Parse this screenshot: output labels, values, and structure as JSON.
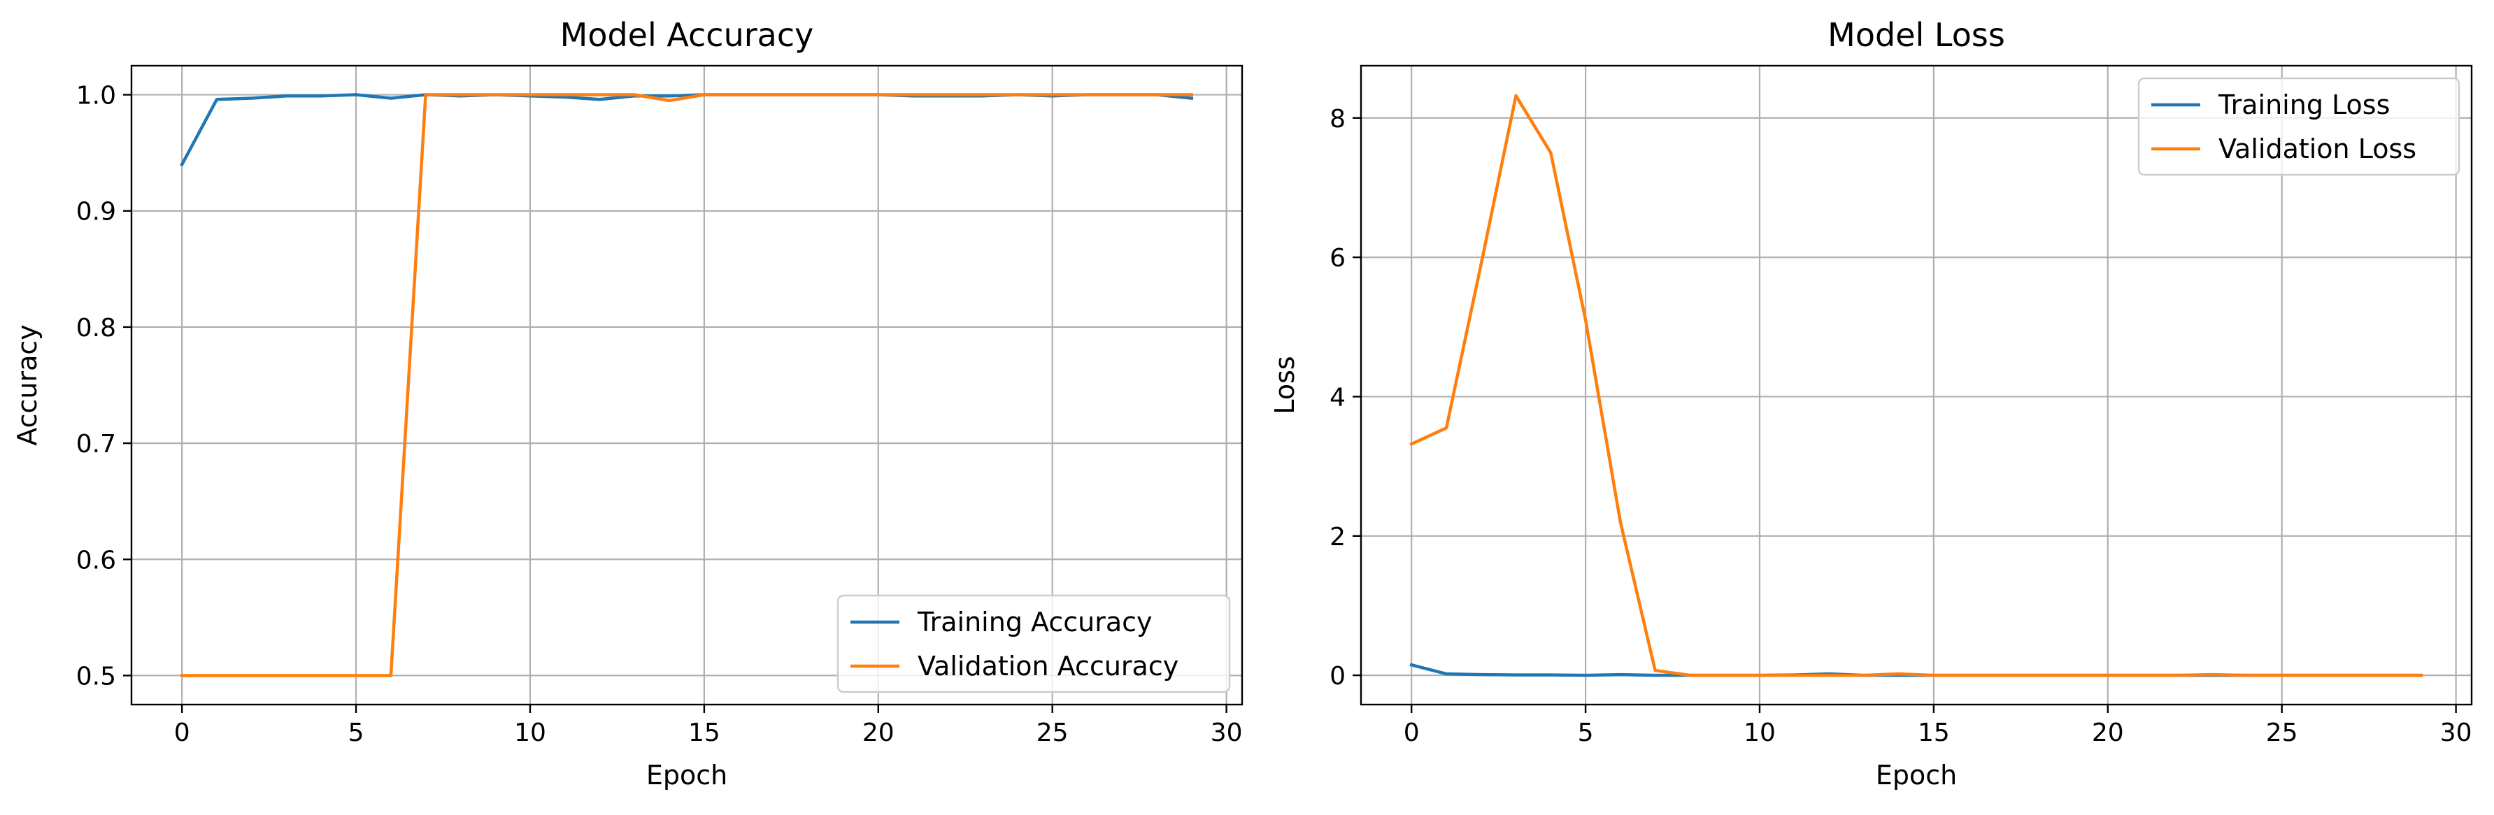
{
  "chart_data": [
    {
      "id": "accuracy",
      "type": "line",
      "title": "Model Accuracy",
      "xlabel": "Epoch",
      "ylabel": "Accuracy",
      "xlim": [
        -1.45,
        30.45
      ],
      "ylim": [
        0.475,
        1.025
      ],
      "xticks": [
        0,
        5,
        10,
        15,
        20,
        25,
        30
      ],
      "yticks": [
        0.5,
        0.6,
        0.7,
        0.8,
        0.9,
        1.0
      ],
      "ytick_labels": [
        "0.5",
        "0.6",
        "0.7",
        "0.8",
        "0.9",
        "1.0"
      ],
      "grid": true,
      "legend_position": "lower-right",
      "x": [
        0,
        1,
        2,
        3,
        4,
        5,
        6,
        7,
        8,
        9,
        10,
        11,
        12,
        13,
        14,
        15,
        16,
        17,
        18,
        19,
        20,
        21,
        22,
        23,
        24,
        25,
        26,
        27,
        28,
        29
      ],
      "series": [
        {
          "name": "Training Accuracy",
          "color": "#1f77b4",
          "values": [
            0.94,
            0.996,
            0.997,
            0.999,
            0.999,
            1.0,
            0.997,
            1.0,
            0.999,
            1.0,
            0.999,
            0.998,
            0.996,
            0.999,
            0.999,
            1.0,
            1.0,
            1.0,
            1.0,
            1.0,
            1.0,
            0.999,
            0.999,
            0.999,
            1.0,
            0.999,
            1.0,
            1.0,
            1.0,
            0.997
          ]
        },
        {
          "name": "Validation Accuracy",
          "color": "#ff7f0e",
          "values": [
            0.5,
            0.5,
            0.5,
            0.5,
            0.5,
            0.5,
            0.5,
            1.0,
            1.0,
            1.0,
            1.0,
            1.0,
            1.0,
            1.0,
            0.995,
            1.0,
            1.0,
            1.0,
            1.0,
            1.0,
            1.0,
            1.0,
            1.0,
            1.0,
            1.0,
            1.0,
            1.0,
            1.0,
            1.0,
            1.0
          ]
        }
      ]
    },
    {
      "id": "loss",
      "type": "line",
      "title": "Model Loss",
      "xlabel": "Epoch",
      "ylabel": "Loss",
      "xlim": [
        -1.45,
        30.45
      ],
      "ylim": [
        -0.42,
        8.75
      ],
      "xticks": [
        0,
        5,
        10,
        15,
        20,
        25,
        30
      ],
      "yticks": [
        0,
        2,
        4,
        6,
        8
      ],
      "ytick_labels": [
        "0",
        "2",
        "4",
        "6",
        "8"
      ],
      "grid": true,
      "legend_position": "top-right",
      "x": [
        0,
        1,
        2,
        3,
        4,
        5,
        6,
        7,
        8,
        9,
        10,
        11,
        12,
        13,
        14,
        15,
        16,
        17,
        18,
        19,
        20,
        21,
        22,
        23,
        24,
        25,
        26,
        27,
        28,
        29
      ],
      "series": [
        {
          "name": "Training Loss",
          "color": "#1f77b4",
          "values": [
            0.15,
            0.02,
            0.01,
            0.005,
            0.005,
            0.0,
            0.01,
            0.0,
            0.0,
            0.0,
            0.0,
            0.005,
            0.02,
            0.0,
            0.0,
            0.0,
            0.0,
            0.0,
            0.0,
            0.0,
            0.0,
            0.0,
            0.0,
            0.0,
            0.0,
            0.0,
            0.0,
            0.0,
            0.0,
            0.0
          ]
        },
        {
          "name": "Validation Loss",
          "color": "#ff7f0e",
          "values": [
            3.32,
            3.55,
            5.9,
            8.32,
            7.5,
            5.1,
            2.2,
            0.07,
            0.0,
            0.0,
            0.0,
            0.0,
            0.0,
            0.0,
            0.02,
            0.0,
            0.0,
            0.0,
            0.0,
            0.0,
            0.0,
            0.0,
            0.0,
            0.01,
            0.0,
            0.0,
            0.0,
            0.0,
            0.0,
            0.0
          ]
        }
      ]
    }
  ]
}
